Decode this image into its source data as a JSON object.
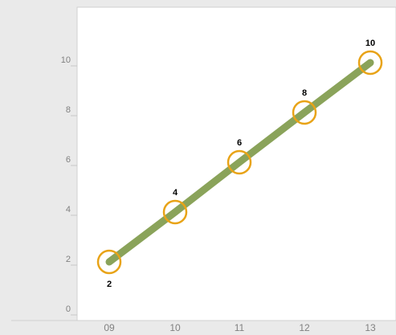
{
  "chart_data": {
    "type": "line",
    "title": "",
    "xlabel": "",
    "ylabel": "",
    "x_ticks": [
      "09",
      "10",
      "11",
      "12",
      "13"
    ],
    "y_ticks": [
      "0",
      "2",
      "4",
      "6",
      "8",
      "10"
    ],
    "ylim": [
      0,
      12
    ],
    "grid": false,
    "legend": "none",
    "series": [
      {
        "x": [
          "09",
          "10",
          "11",
          "12",
          "13"
        ],
        "values": [
          2,
          4,
          6,
          8,
          10
        ],
        "data_labels": [
          "2",
          "4",
          "6",
          "8",
          "10"
        ],
        "line_color": "#8aa35a",
        "marker_color": "#e8a317"
      }
    ]
  },
  "colors": {
    "page_background": "#eaeaea",
    "plot_background": "#ffffff",
    "axis_line": "#d0d0d0",
    "tick_text": "#808080",
    "data_label_text": "#000000"
  }
}
